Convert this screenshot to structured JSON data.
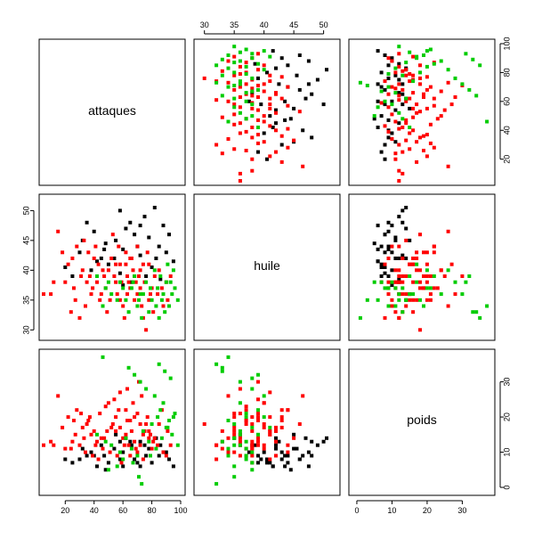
{
  "chart_data": {
    "type": "scatter",
    "variables": [
      {
        "name": "attaques",
        "range": [
          5,
          100
        ],
        "ticks": [
          20,
          40,
          60,
          80,
          100
        ]
      },
      {
        "name": "huile",
        "range": [
          29,
          52
        ],
        "ticks": [
          30,
          35,
          40,
          45,
          50
        ]
      },
      {
        "name": "poids",
        "range": [
          -1,
          38
        ],
        "ticks": [
          0,
          10,
          20,
          30
        ]
      }
    ],
    "colors": {
      "group_1": "#000000",
      "group_2": "#ff0000",
      "group_3": "#00cc00"
    },
    "points": [
      [
        82,
        50.5,
        14,
        1
      ],
      [
        75,
        49,
        12,
        1
      ],
      [
        88,
        47.5,
        10,
        1
      ],
      [
        65,
        48,
        13,
        1
      ],
      [
        92,
        46,
        8,
        1
      ],
      [
        40,
        46.5,
        9,
        1
      ],
      [
        55,
        45,
        15,
        1
      ],
      [
        78,
        45.5,
        11,
        1
      ],
      [
        70,
        44,
        7,
        1
      ],
      [
        60,
        43.5,
        6,
        1
      ],
      [
        85,
        44,
        9,
        1
      ],
      [
        45,
        42,
        12,
        1
      ],
      [
        30,
        43,
        8,
        1
      ],
      [
        50,
        41,
        7,
        1
      ],
      [
        72,
        42.5,
        13,
        1
      ],
      [
        95,
        41.5,
        6,
        1
      ],
      [
        38,
        40,
        10,
        1
      ],
      [
        58,
        39.5,
        8,
        1
      ],
      [
        80,
        40.5,
        7,
        1
      ],
      [
        66,
        38,
        12,
        1
      ],
      [
        48,
        44.5,
        5,
        1
      ],
      [
        35,
        48,
        9,
        1
      ],
      [
        62,
        47,
        14,
        1
      ],
      [
        90,
        43,
        10,
        1
      ],
      [
        42,
        41.5,
        6,
        1
      ],
      [
        76,
        39,
        9,
        1
      ],
      [
        54,
        42,
        11,
        1
      ],
      [
        86,
        38.5,
        12,
        1
      ],
      [
        68,
        46,
        8,
        1
      ],
      [
        32,
        45,
        11,
        1
      ],
      [
        25,
        39,
        7,
        1
      ],
      [
        20,
        40.5,
        8,
        1
      ],
      [
        58,
        50,
        13,
        1
      ],
      [
        72,
        47.5,
        6,
        1
      ],
      [
        83,
        42,
        14,
        1
      ],
      [
        60,
        37.5,
        10,
        1
      ],
      [
        47,
        43.5,
        9,
        1
      ],
      [
        15,
        46.5,
        26,
        2
      ],
      [
        22,
        41,
        20,
        2
      ],
      [
        28,
        44,
        22,
        2
      ],
      [
        35,
        38,
        18,
        2
      ],
      [
        40,
        42,
        16,
        2
      ],
      [
        45,
        36,
        14,
        2
      ],
      [
        50,
        40,
        24,
        2
      ],
      [
        55,
        38,
        20,
        2
      ],
      [
        58,
        35,
        17,
        2
      ],
      [
        62,
        41,
        15,
        2
      ],
      [
        65,
        37,
        19,
        2
      ],
      [
        68,
        39,
        13,
        2
      ],
      [
        70,
        36,
        21,
        2
      ],
      [
        72,
        40,
        12,
        2
      ],
      [
        75,
        38,
        16,
        2
      ],
      [
        78,
        35,
        14,
        2
      ],
      [
        80,
        37,
        11,
        2
      ],
      [
        30,
        32,
        12,
        2
      ],
      [
        34,
        34,
        10,
        2
      ],
      [
        38,
        36,
        15,
        2
      ],
      [
        42,
        38,
        13,
        2
      ],
      [
        46,
        40,
        11,
        2
      ],
      [
        52,
        42,
        17,
        2
      ],
      [
        56,
        36,
        9,
        2
      ],
      [
        60,
        34,
        14,
        2
      ],
      [
        64,
        38,
        12,
        2
      ],
      [
        66,
        42,
        16,
        2
      ],
      [
        70,
        44,
        10,
        2
      ],
      [
        74,
        32,
        8,
        2
      ],
      [
        76,
        30,
        18,
        2
      ],
      [
        20,
        38,
        11,
        2
      ],
      [
        25,
        42,
        13,
        2
      ],
      [
        27,
        35,
        15,
        2
      ],
      [
        32,
        40,
        17,
        2
      ],
      [
        36,
        43,
        19,
        2
      ],
      [
        44,
        35,
        21,
        2
      ],
      [
        48,
        37,
        23,
        2
      ],
      [
        54,
        39,
        25,
        2
      ],
      [
        58,
        41,
        27,
        2
      ],
      [
        62,
        43,
        22,
        2
      ],
      [
        68,
        35,
        20,
        2
      ],
      [
        72,
        37,
        18,
        2
      ],
      [
        78,
        41,
        16,
        2
      ],
      [
        82,
        39,
        14,
        2
      ],
      [
        84,
        36,
        12,
        2
      ],
      [
        88,
        34,
        10,
        2
      ],
      [
        90,
        38,
        9,
        2
      ],
      [
        10,
        36,
        13,
        2
      ],
      [
        18,
        43,
        17,
        2
      ],
      [
        24,
        33,
        11,
        2
      ],
      [
        33,
        45,
        14,
        2
      ],
      [
        37,
        39,
        20,
        2
      ],
      [
        41,
        44,
        12,
        2
      ],
      [
        49,
        33,
        16,
        2
      ],
      [
        53,
        46,
        18,
        2
      ],
      [
        57,
        44,
        22,
        2
      ],
      [
        61,
        32,
        12,
        2
      ],
      [
        63,
        36,
        28,
        2
      ],
      [
        67,
        40,
        24,
        2
      ],
      [
        71,
        39,
        30,
        2
      ],
      [
        73,
        34,
        26,
        2
      ],
      [
        77,
        43,
        20,
        2
      ],
      [
        79,
        36,
        15,
        2
      ],
      [
        81,
        33,
        13,
        2
      ],
      [
        85,
        40,
        18,
        2
      ],
      [
        87,
        37,
        22,
        2
      ],
      [
        91,
        35,
        16,
        2
      ],
      [
        93,
        39,
        12,
        2
      ],
      [
        39,
        37,
        9,
        2
      ],
      [
        43,
        41,
        8,
        2
      ],
      [
        51,
        35,
        10,
        2
      ],
      [
        59,
        38,
        7,
        2
      ],
      [
        65,
        42,
        9,
        2
      ],
      [
        69,
        38,
        11,
        2
      ],
      [
        26,
        37,
        19,
        2
      ],
      [
        31,
        39,
        21,
        2
      ],
      [
        47,
        39,
        14,
        2
      ],
      [
        55,
        41,
        16,
        2
      ],
      [
        63,
        39,
        19,
        2
      ],
      [
        74,
        41,
        15,
        2
      ],
      [
        5,
        36,
        12,
        2
      ],
      [
        12,
        38,
        12,
        2
      ],
      [
        42,
        39,
        15,
        3
      ],
      [
        48,
        37,
        13,
        3
      ],
      [
        52,
        36,
        12,
        3
      ],
      [
        58,
        38,
        10,
        3
      ],
      [
        62,
        35,
        14,
        3
      ],
      [
        66,
        37,
        11,
        3
      ],
      [
        70,
        34,
        9,
        3
      ],
      [
        74,
        36,
        16,
        3
      ],
      [
        78,
        33,
        13,
        3
      ],
      [
        80,
        35,
        18,
        3
      ],
      [
        84,
        37,
        20,
        3
      ],
      [
        86,
        39,
        22,
        3
      ],
      [
        88,
        36,
        24,
        3
      ],
      [
        90,
        38,
        17,
        3
      ],
      [
        92,
        34,
        19,
        3
      ],
      [
        94,
        36,
        15,
        3
      ],
      [
        96,
        37,
        21,
        3
      ],
      [
        98,
        35,
        12,
        3
      ],
      [
        82,
        40,
        26,
        3
      ],
      [
        76,
        38,
        28,
        3
      ],
      [
        72,
        36,
        30,
        3
      ],
      [
        68,
        39,
        32,
        3
      ],
      [
        64,
        33,
        34,
        3
      ],
      [
        60,
        37,
        8,
        3
      ],
      [
        56,
        35,
        6,
        3
      ],
      [
        50,
        38,
        5,
        3
      ],
      [
        46,
        34,
        37,
        3
      ],
      [
        85,
        32,
        35,
        3
      ],
      [
        89,
        33,
        33,
        3
      ],
      [
        93,
        38,
        31,
        3
      ],
      [
        95,
        40,
        20,
        3
      ],
      [
        91,
        41,
        17,
        3
      ],
      [
        87,
        35,
        14,
        3
      ],
      [
        83,
        34,
        11,
        3
      ],
      [
        79,
        37,
        9,
        3
      ],
      [
        71,
        35,
        3,
        3
      ],
      [
        67,
        38,
        7,
        3
      ],
      [
        73,
        32,
        1,
        3
      ]
    ]
  }
}
